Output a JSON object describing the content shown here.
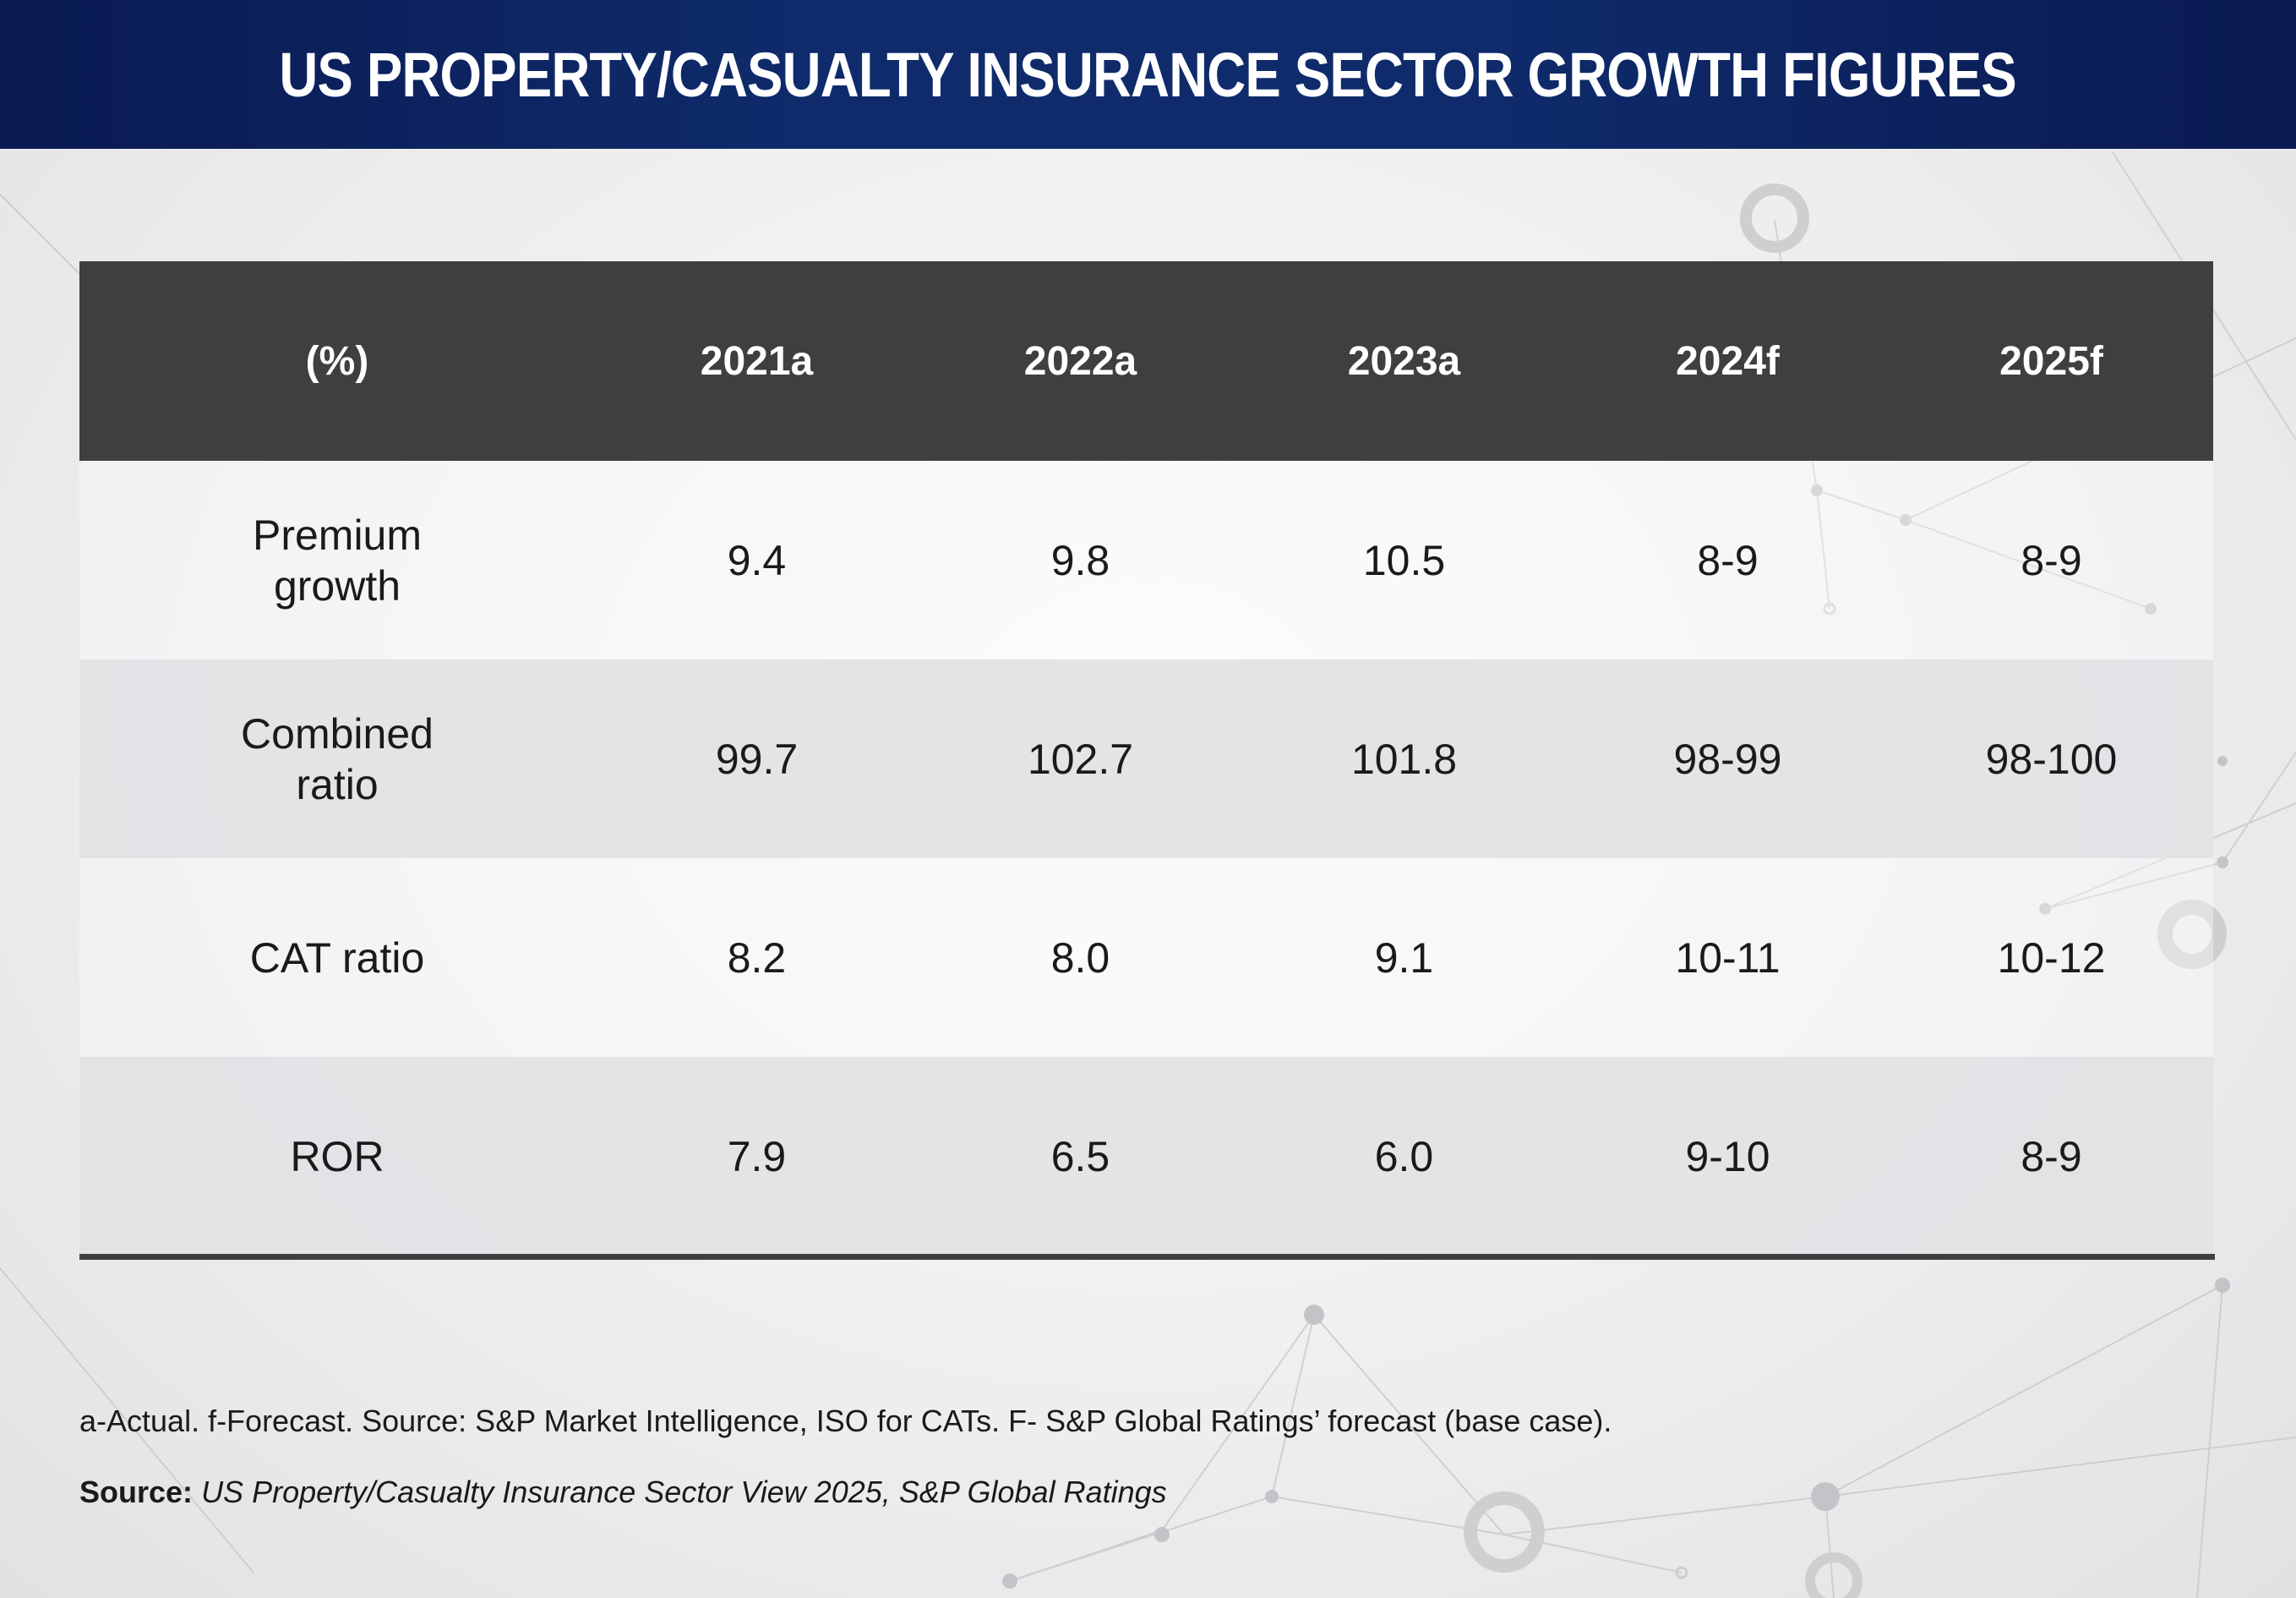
{
  "title": "US PROPERTY/CASUALTY INSURANCE SECTOR GROWTH FIGURES",
  "chart_data": {
    "type": "table",
    "columns": [
      "(%)",
      "2021a",
      "2022a",
      "2023a",
      "2024f",
      "2025f"
    ],
    "rows": [
      {
        "label": "Premium growth",
        "values": [
          "9.4",
          "9.8",
          "10.5",
          "8-9",
          "8-9"
        ]
      },
      {
        "label": "Combined ratio",
        "values": [
          "99.7",
          "102.7",
          "101.8",
          "98-99",
          "98-100"
        ]
      },
      {
        "label": "CAT ratio",
        "values": [
          "8.2",
          "8.0",
          "9.1",
          "10-11",
          "10-12"
        ]
      },
      {
        "label": "ROR",
        "values": [
          "7.9",
          "6.5",
          "6.0",
          "9-10",
          "8-9"
        ]
      }
    ]
  },
  "footnote": "a-Actual. f-Forecast. Source: S&P Market Intelligence, ISO for CATs. F- S&P Global Ratings’ forecast (base case).",
  "source": {
    "label": "Source:",
    "text": "US Property/Casualty Insurance Sector View 2025, S&P Global Ratings"
  },
  "colors": {
    "banner": "#0f2b6b",
    "header_row": "#3f3f40",
    "shaded_row": "#e2e3e5"
  }
}
